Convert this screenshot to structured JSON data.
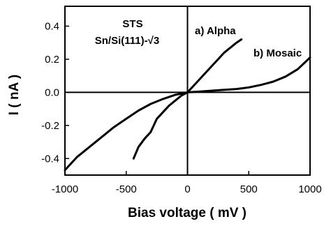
{
  "chart_data": {
    "type": "line",
    "title": "",
    "xlabel": "Bias voltage ( mV )",
    "ylabel": "I ( nA )",
    "xlim": [
      -1000,
      1000
    ],
    "ylim": [
      -0.5,
      0.52
    ],
    "xticks": [
      -1000,
      -500,
      0,
      500,
      1000
    ],
    "xtick_labels": [
      "-1000",
      "-500",
      "0",
      "500",
      "1000"
    ],
    "yticks": [
      -0.4,
      -0.2,
      0.0,
      0.2,
      0.4
    ],
    "ytick_labels": [
      "-0.4",
      "-0.2",
      "0.0",
      "0.2",
      "0.4"
    ],
    "grid": false,
    "annotations": [
      {
        "text": "STS"
      },
      {
        "text": "Sn/Si(111)-√3"
      }
    ],
    "series": [
      {
        "name": "a) Alpha",
        "x": [
          -440,
          -400,
          -350,
          -300,
          -250,
          -200,
          -150,
          -100,
          -50,
          0,
          50,
          100,
          150,
          200,
          250,
          300,
          350,
          400,
          440
        ],
        "y": [
          -0.4,
          -0.33,
          -0.28,
          -0.24,
          -0.16,
          -0.12,
          -0.08,
          -0.05,
          -0.02,
          0.0,
          0.04,
          0.08,
          0.12,
          0.16,
          0.2,
          0.24,
          0.27,
          0.3,
          0.32
        ]
      },
      {
        "name": "b) Mosaic",
        "x": [
          -1000,
          -900,
          -800,
          -700,
          -600,
          -500,
          -400,
          -300,
          -200,
          -100,
          0,
          100,
          200,
          300,
          400,
          500,
          600,
          700,
          800,
          900,
          1000
        ],
        "y": [
          -0.47,
          -0.39,
          -0.33,
          -0.27,
          -0.21,
          -0.16,
          -0.11,
          -0.07,
          -0.04,
          -0.015,
          0.0,
          0.005,
          0.01,
          0.015,
          0.02,
          0.03,
          0.045,
          0.065,
          0.095,
          0.14,
          0.21
        ]
      }
    ]
  }
}
